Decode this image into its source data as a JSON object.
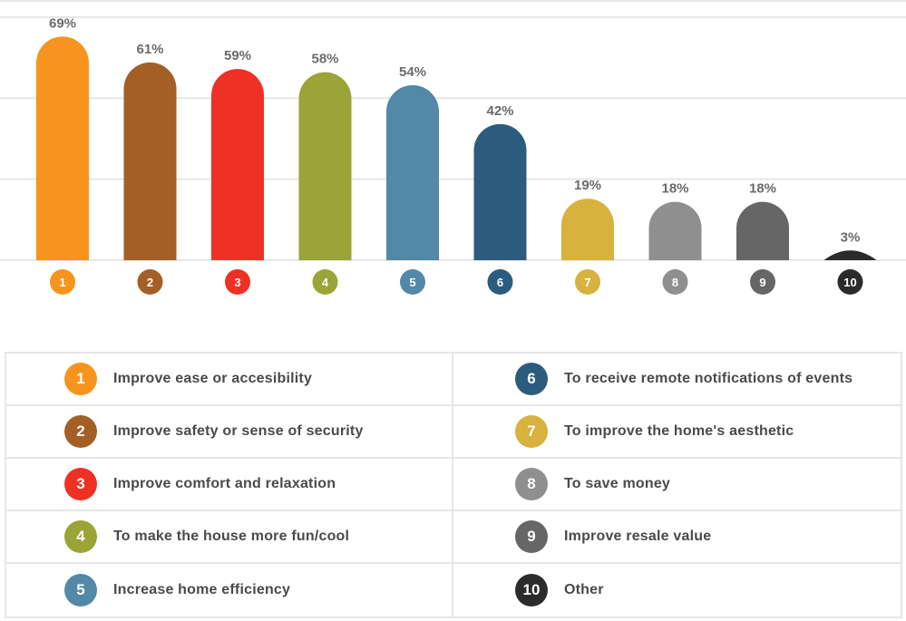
{
  "chart_data": {
    "type": "bar",
    "categories": [
      "1",
      "2",
      "3",
      "4",
      "5",
      "6",
      "7",
      "8",
      "9",
      "10"
    ],
    "values": [
      69,
      61,
      59,
      58,
      54,
      42,
      19,
      18,
      18,
      3
    ],
    "value_labels": [
      "69%",
      "61%",
      "59%",
      "58%",
      "54%",
      "42%",
      "19%",
      "18%",
      "18%",
      "3%"
    ],
    "colors": [
      "#f7941d",
      "#a35f26",
      "#ee3124",
      "#9aa437",
      "#5288a8",
      "#2b5c7e",
      "#d8b23f",
      "#8f8f8f",
      "#666666",
      "#2b2b2b"
    ],
    "ylim": [
      0,
      80
    ],
    "grid": true,
    "gridline_values": [
      25,
      50,
      75
    ],
    "title": "",
    "xlabel": "",
    "ylabel": ""
  },
  "legend": {
    "items": [
      {
        "num": "1",
        "label": "Improve ease or accesibility",
        "color": "#f7941d"
      },
      {
        "num": "2",
        "label": "Improve safety or sense of security",
        "color": "#a35f26"
      },
      {
        "num": "3",
        "label": "Improve comfort and relaxation",
        "color": "#ee3124"
      },
      {
        "num": "4",
        "label": "To make the house more fun/cool",
        "color": "#9aa437"
      },
      {
        "num": "5",
        "label": "Increase home efficiency",
        "color": "#5288a8"
      },
      {
        "num": "6",
        "label": "To receive remote notifications of events",
        "color": "#2b5c7e"
      },
      {
        "num": "7",
        "label": "To improve the home's aesthetic",
        "color": "#d8b23f"
      },
      {
        "num": "8",
        "label": "To save money",
        "color": "#8f8f8f"
      },
      {
        "num": "9",
        "label": "Improve resale value",
        "color": "#666666"
      },
      {
        "num": "10",
        "label": "Other",
        "color": "#2b2b2b"
      }
    ]
  }
}
